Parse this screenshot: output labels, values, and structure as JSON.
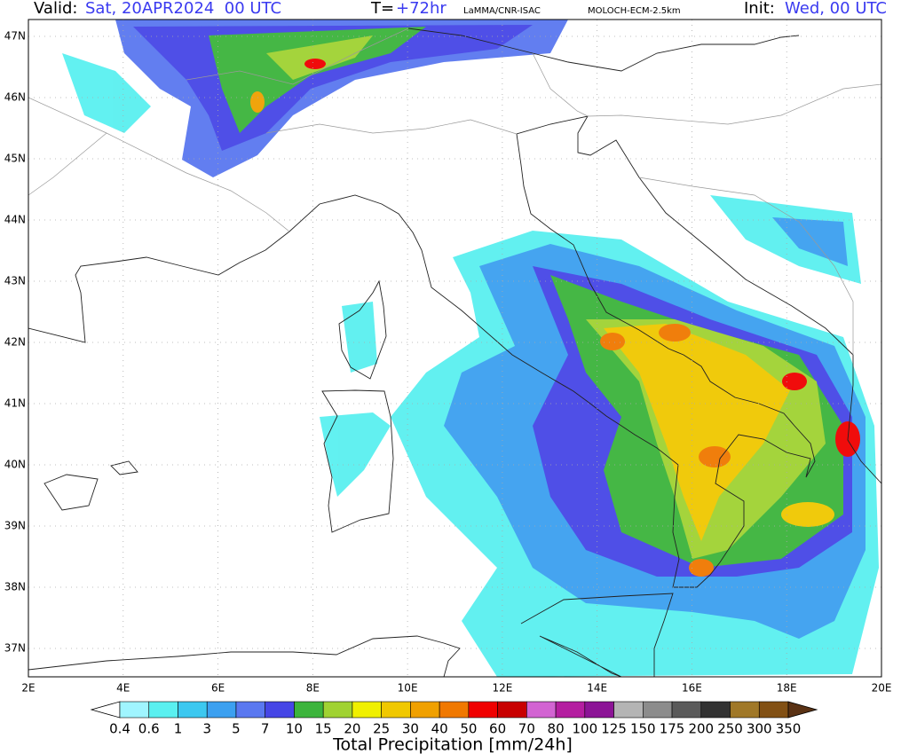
{
  "header": {
    "valid_label": "Valid:",
    "valid_value": "Sat, 20APR2024  00 UTC",
    "lead_label": "T=",
    "lead_value": "+72hr",
    "source": "LaMMA/CNR-ISAC",
    "model": "MOLOCH-ECM-2.5km",
    "init_label": "Init:",
    "init_value": "Wed, 00 UTC"
  },
  "map": {
    "lat_labels": [
      "47N",
      "46N",
      "45N",
      "44N",
      "43N",
      "42N",
      "41N",
      "40N",
      "39N",
      "38N",
      "37N"
    ],
    "lon_labels": [
      "2E",
      "4E",
      "6E",
      "8E",
      "10E",
      "12E",
      "14E",
      "16E",
      "18E",
      "20E"
    ]
  },
  "colorbar": {
    "title": "Total Precipitation [mm/24h]",
    "levels": [
      0.4,
      0.6,
      1,
      3,
      5,
      7,
      10,
      15,
      20,
      25,
      30,
      40,
      50,
      60,
      70,
      80,
      100,
      125,
      150,
      175,
      200,
      250,
      300,
      350
    ],
    "colors": [
      "#ffffff",
      "#a0f5ff",
      "#5af0f0",
      "#3cc8f0",
      "#3ca0f0",
      "#5a78f0",
      "#4646e6",
      "#3cb43c",
      "#a0d232",
      "#f0f000",
      "#f0c800",
      "#f0a000",
      "#f07800",
      "#f00000",
      "#c80000",
      "#d264d2",
      "#b41ea0",
      "#8c1496",
      "#b4b4b4",
      "#8c8c8c",
      "#5a5a5a",
      "#323232",
      "#a07828",
      "#825014",
      "#5a3214"
    ]
  }
}
